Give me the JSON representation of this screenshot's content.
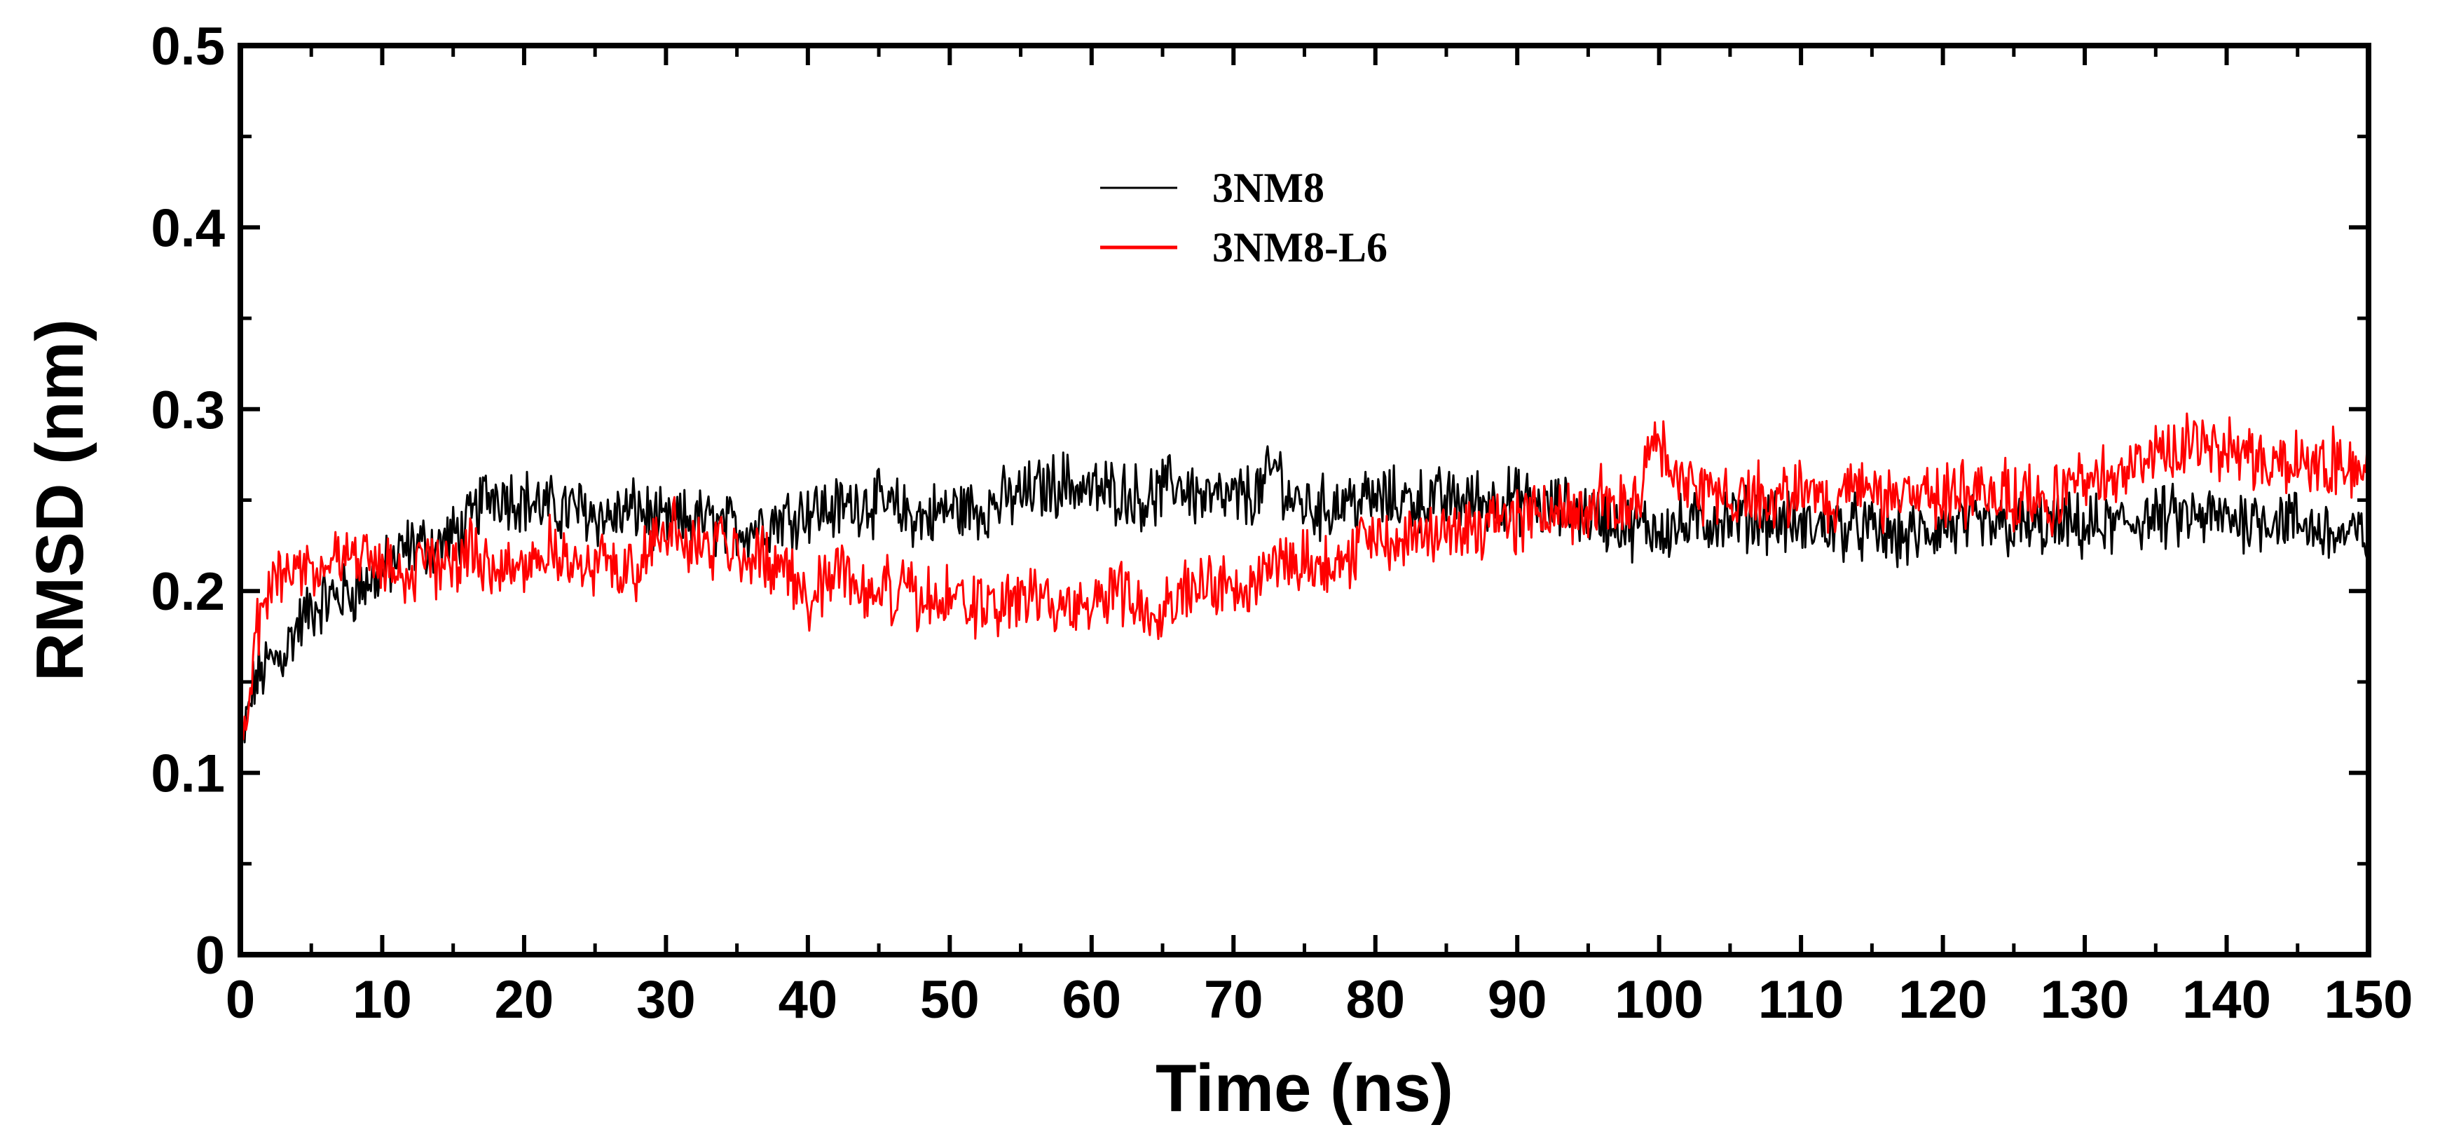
{
  "chart_data": {
    "type": "line",
    "title": "",
    "xlabel": "Time (ns)",
    "ylabel": "RMSD (nm)",
    "xlim": [
      0,
      150
    ],
    "ylim": [
      0,
      0.5
    ],
    "xticks": [
      0,
      10,
      20,
      30,
      40,
      50,
      60,
      70,
      80,
      90,
      100,
      110,
      120,
      130,
      140,
      150
    ],
    "xtick_labels": [
      "0",
      "10",
      "20",
      "30",
      "40",
      "50",
      "60",
      "70",
      "80",
      "90",
      "100",
      "110",
      "120",
      "130",
      "140",
      "150"
    ],
    "yticks": [
      0,
      0.1,
      0.2,
      0.3,
      0.4,
      0.5
    ],
    "ytick_labels": [
      "0",
      "0.1",
      "0.2",
      "0.3",
      "0.4",
      "0.5"
    ],
    "grid": false,
    "legend_position": "top-center",
    "series": [
      {
        "name": "3NM8",
        "color": "#000000",
        "x": [
          0,
          1,
          2,
          3,
          4,
          5,
          6,
          8,
          10,
          12,
          14,
          16,
          17,
          18,
          20,
          22,
          24,
          26,
          28,
          30,
          32,
          34,
          36,
          38,
          40,
          42,
          44,
          46,
          48,
          50,
          52,
          54,
          56,
          58,
          60,
          62,
          64,
          66,
          68,
          70,
          72,
          73,
          74,
          76,
          78,
          80,
          82,
          84,
          86,
          88,
          90,
          92,
          94,
          96,
          98,
          100,
          102,
          104,
          106,
          108,
          110,
          112,
          114,
          116,
          118,
          120,
          122,
          124,
          126,
          128,
          130,
          132,
          134,
          136,
          138,
          140,
          142,
          144,
          146,
          148,
          150
        ],
        "values": [
          0.11,
          0.15,
          0.16,
          0.165,
          0.18,
          0.19,
          0.195,
          0.2,
          0.21,
          0.225,
          0.225,
          0.235,
          0.25,
          0.255,
          0.25,
          0.245,
          0.245,
          0.24,
          0.245,
          0.235,
          0.24,
          0.235,
          0.235,
          0.24,
          0.245,
          0.245,
          0.25,
          0.245,
          0.24,
          0.245,
          0.245,
          0.25,
          0.255,
          0.26,
          0.255,
          0.255,
          0.25,
          0.26,
          0.25,
          0.25,
          0.255,
          0.27,
          0.25,
          0.245,
          0.25,
          0.25,
          0.25,
          0.25,
          0.25,
          0.25,
          0.25,
          0.245,
          0.245,
          0.24,
          0.235,
          0.235,
          0.235,
          0.24,
          0.24,
          0.24,
          0.235,
          0.235,
          0.235,
          0.23,
          0.23,
          0.235,
          0.235,
          0.235,
          0.235,
          0.235,
          0.235,
          0.235,
          0.24,
          0.24,
          0.24,
          0.24,
          0.24,
          0.24,
          0.235,
          0.23,
          0.23
        ]
      },
      {
        "name": "3NM8-L6",
        "color": "#ff0000",
        "x": [
          0,
          1,
          2,
          3,
          4,
          5,
          6,
          8,
          10,
          12,
          14,
          16,
          18,
          20,
          22,
          24,
          26,
          28,
          30,
          32,
          34,
          36,
          38,
          40,
          42,
          44,
          46,
          48,
          50,
          52,
          54,
          56,
          58,
          60,
          62,
          64,
          66,
          68,
          70,
          72,
          74,
          76,
          78,
          80,
          82,
          84,
          86,
          88,
          90,
          92,
          94,
          96,
          98,
          100,
          102,
          104,
          106,
          108,
          110,
          112,
          114,
          116,
          118,
          120,
          122,
          124,
          126,
          128,
          130,
          132,
          134,
          136,
          138,
          140,
          142,
          144,
          146,
          148,
          150
        ],
        "values": [
          0.11,
          0.17,
          0.2,
          0.215,
          0.215,
          0.21,
          0.215,
          0.22,
          0.215,
          0.21,
          0.215,
          0.22,
          0.215,
          0.215,
          0.225,
          0.21,
          0.215,
          0.215,
          0.235,
          0.225,
          0.225,
          0.22,
          0.215,
          0.195,
          0.215,
          0.2,
          0.2,
          0.195,
          0.195,
          0.19,
          0.195,
          0.195,
          0.19,
          0.195,
          0.2,
          0.19,
          0.2,
          0.205,
          0.2,
          0.21,
          0.22,
          0.215,
          0.22,
          0.23,
          0.23,
          0.23,
          0.235,
          0.235,
          0.24,
          0.245,
          0.245,
          0.25,
          0.245,
          0.28,
          0.255,
          0.25,
          0.255,
          0.25,
          0.255,
          0.25,
          0.255,
          0.25,
          0.25,
          0.255,
          0.25,
          0.255,
          0.25,
          0.25,
          0.26,
          0.265,
          0.27,
          0.28,
          0.28,
          0.28,
          0.275,
          0.27,
          0.27,
          0.27,
          0.27
        ]
      }
    ]
  }
}
